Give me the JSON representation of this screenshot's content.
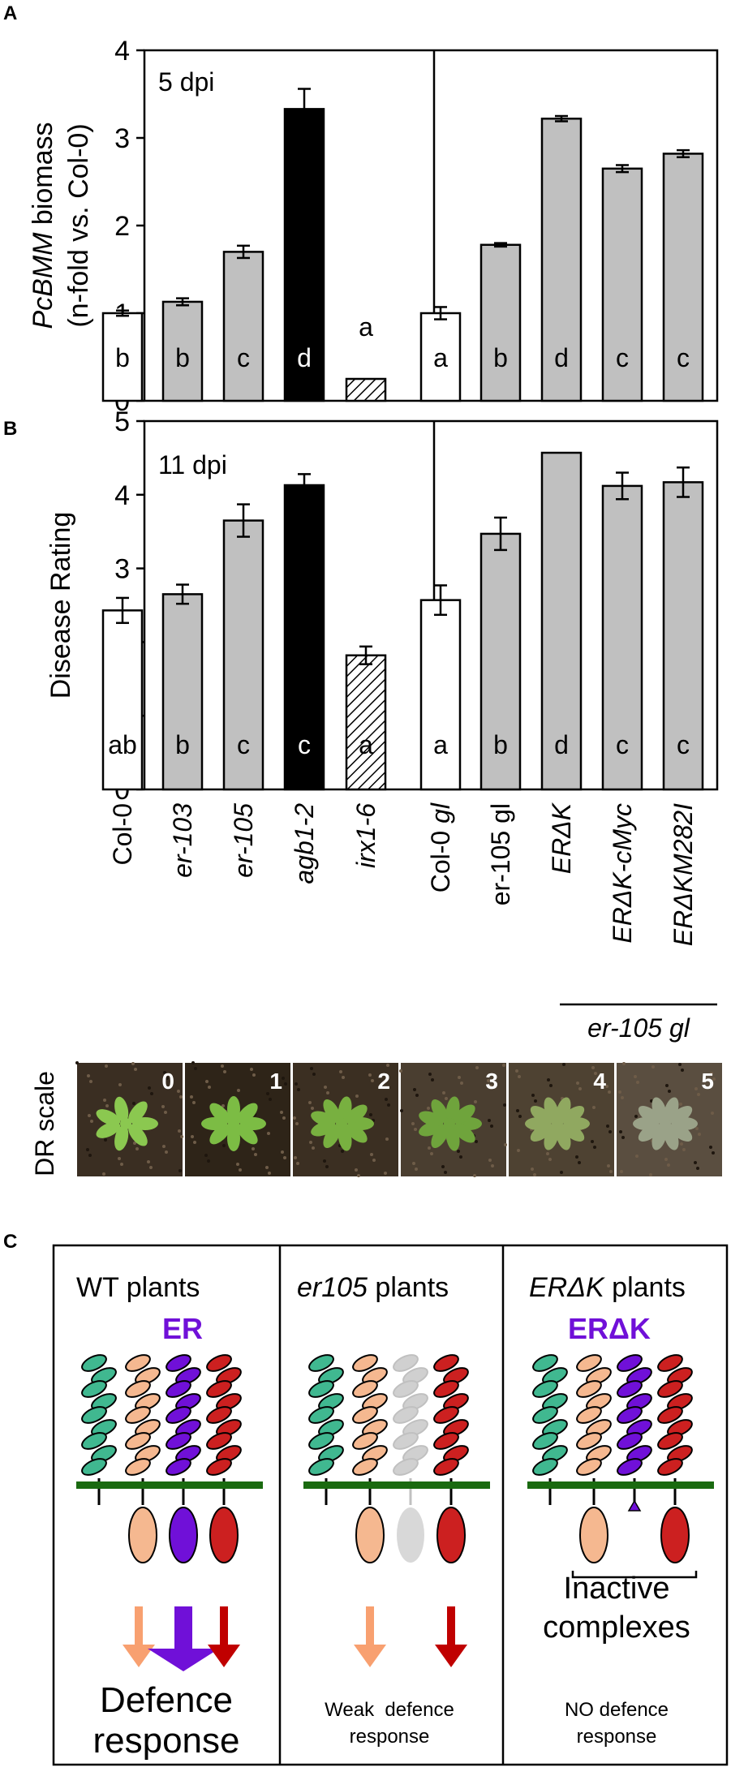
{
  "panels": {
    "a": "A",
    "b": "B",
    "c": "C"
  },
  "colors": {
    "white_bar": "#ffffff",
    "grey_bar": "#c0c0c0",
    "black_bar": "#000000",
    "purple": "#7010d8",
    "salmon_arrow": "#f8a070",
    "red_arrow": "#c00000",
    "membrane": "#1a6a10",
    "teal": "#40b890",
    "peach": "#f5b890",
    "red": "#cc2020"
  },
  "categories": [
    "Col-0",
    "er-103",
    "er-105",
    "agb1-2",
    "irx1-6",
    "Col-0 gl",
    "er-105 gl",
    "ERΔK",
    "ERΔK-cMyc",
    "ERΔKM282I"
  ],
  "bracket_label": "er-105 gl",
  "chart_data": [
    {
      "type": "bar",
      "panel": "A",
      "annotation": "5 dpi",
      "ylabel_italic": "PcBMM",
      "ylabel_rest": " biomass",
      "ylabel_line2": "(n-fold vs. Col-0)",
      "ylim": [
        0,
        4
      ],
      "yticks": [
        "0",
        "1",
        "2",
        "3",
        "4"
      ],
      "categories": [
        "Col-0",
        "er-103",
        "er-105",
        "agb1-2",
        "irx1-6",
        "Col-0 gl",
        "er-105 gl",
        "ERΔK",
        "ERΔK-cMyc",
        "ERΔKM282I"
      ],
      "values": [
        1.0,
        1.13,
        1.7,
        3.33,
        0.25,
        1.0,
        1.78,
        3.22,
        2.65,
        2.82
      ],
      "errors": [
        0.03,
        0.04,
        0.07,
        0.23,
        0.0,
        0.07,
        0.02,
        0.03,
        0.04,
        0.04
      ],
      "fills": [
        "white",
        "grey",
        "grey",
        "black",
        "hatch",
        "white",
        "grey",
        "grey",
        "grey",
        "grey"
      ],
      "letters": [
        "b",
        "b",
        "c",
        "d",
        "a",
        "a",
        "b",
        "d",
        "c",
        "c"
      ]
    },
    {
      "type": "bar",
      "panel": "B",
      "annotation": "11 dpi",
      "ylabel": "Disease Rating",
      "ylim": [
        0,
        5
      ],
      "yticks": [
        "0",
        "1",
        "2",
        "3",
        "4",
        "5"
      ],
      "categories": [
        "Col-0",
        "er-103",
        "er-105",
        "agb1-2",
        "irx1-6",
        "Col-0 gl",
        "er-105 gl",
        "ERΔK",
        "ERΔK-cMyc",
        "ERΔKM282I"
      ],
      "values": [
        2.43,
        2.65,
        3.65,
        4.13,
        1.82,
        2.57,
        3.47,
        4.57,
        4.12,
        4.17
      ],
      "errors": [
        0.17,
        0.13,
        0.22,
        0.15,
        0.12,
        0.2,
        0.22,
        0.0,
        0.18,
        0.2
      ],
      "fills": [
        "white",
        "grey",
        "grey",
        "black",
        "hatch",
        "white",
        "grey",
        "grey",
        "grey",
        "grey"
      ],
      "letters": [
        "ab",
        "b",
        "c",
        "c",
        "a",
        "a",
        "b",
        "d",
        "c",
        "c"
      ]
    }
  ],
  "dr_scale": {
    "label": "DR scale",
    "numbers": [
      "0",
      "1",
      "2",
      "3",
      "4",
      "5"
    ]
  },
  "panel_c": {
    "boxes": [
      {
        "title": "WT plants",
        "title_italic": "",
        "title_rest": "",
        "receptor": "ER",
        "caption1": "Defence",
        "caption2": "response"
      },
      {
        "title": "",
        "title_italic": "er105",
        "title_rest": " plants",
        "receptor": "",
        "caption1": "Weak  defence",
        "caption2": "response"
      },
      {
        "title": "",
        "title_italic": "ERΔK",
        "title_rest": " plants",
        "receptor": "ERΔK",
        "caption1": "NO defence",
        "caption2": "response"
      }
    ],
    "inactive1": "Inactive",
    "inactive2": "complexes"
  }
}
